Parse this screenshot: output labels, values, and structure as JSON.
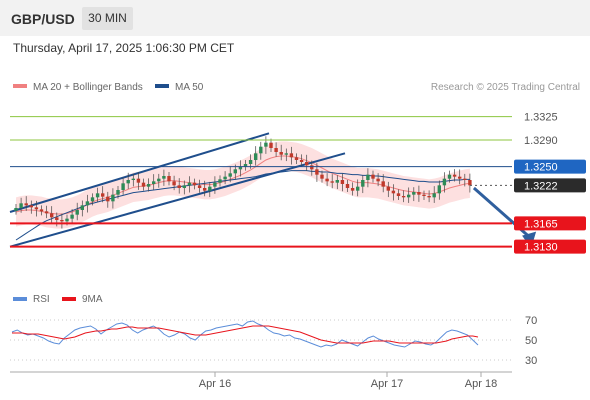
{
  "header": {
    "symbol": "GBP/USD",
    "interval": "30 MIN",
    "timestamp": "Thursday, April 17, 2025 1:06:30 PM CET"
  },
  "legend": {
    "items": [
      {
        "label": "MA 20 + Bollinger Bands",
        "color": "#f08080"
      },
      {
        "label": "MA 50",
        "color": "#1f4e8c"
      }
    ],
    "credit": "Research © 2025 Trading Central"
  },
  "colors": {
    "support": "#e8141c",
    "resistance": "#8cc63f",
    "pivot": "#1f4e8c",
    "candle_up": "#2e8b57",
    "candle_down": "#c0392b",
    "band_fill": "#fde0e0",
    "arrow": "#2f5f9e",
    "current_badge": "#2b2b2b",
    "rsi_line": "#5b8dd9",
    "rsi_ma_line": "#e8141c"
  },
  "chart_data": [
    {
      "type": "candlestick",
      "title": "GBP/USD",
      "ylim": [
        1.308,
        1.335
      ],
      "x_ticks": [
        "Apr 16",
        "Apr 17",
        "Apr 18"
      ],
      "levels": [
        {
          "label": "1.3325",
          "value": 1.3325,
          "kind": "resistance"
        },
        {
          "label": "1.3290",
          "value": 1.329,
          "kind": "resistance"
        },
        {
          "label": "1.3250",
          "value": 1.325,
          "kind": "pivot"
        },
        {
          "label": "1.3222",
          "value": 1.3222,
          "kind": "current"
        },
        {
          "label": "1.3165",
          "value": 1.3165,
          "kind": "support"
        },
        {
          "label": "1.3130",
          "value": 1.313,
          "kind": "support"
        }
      ],
      "close_series": [
        1.3188,
        1.3195,
        1.3192,
        1.3189,
        1.3186,
        1.3183,
        1.318,
        1.3174,
        1.317,
        1.3168,
        1.3172,
        1.3178,
        1.3185,
        1.3192,
        1.3198,
        1.3204,
        1.321,
        1.3205,
        1.3198,
        1.3208,
        1.3215,
        1.3225,
        1.323,
        1.3232,
        1.3226,
        1.322,
        1.3224,
        1.3228,
        1.3232,
        1.3236,
        1.3228,
        1.3222,
        1.3218,
        1.3222,
        1.3226,
        1.3222,
        1.3218,
        1.3214,
        1.322,
        1.3226,
        1.3231,
        1.3235,
        1.324,
        1.3246,
        1.325,
        1.3254,
        1.326,
        1.327,
        1.328,
        1.3286,
        1.3278,
        1.3272,
        1.3268,
        1.327,
        1.3264,
        1.326,
        1.3257,
        1.3252,
        1.3246,
        1.3238,
        1.3232,
        1.3228,
        1.3226,
        1.323,
        1.3224,
        1.3218,
        1.3214,
        1.322,
        1.323,
        1.3238,
        1.3232,
        1.3228,
        1.322,
        1.3214,
        1.321,
        1.3206,
        1.3204,
        1.3208,
        1.3212,
        1.3208,
        1.3206,
        1.3204,
        1.321,
        1.3222,
        1.3232,
        1.3238,
        1.3235,
        1.3232,
        1.323,
        1.3222
      ],
      "ma20_series": [
        1.3182,
        1.3184,
        1.3185,
        1.3185,
        1.3184,
        1.3183,
        1.3181,
        1.318,
        1.3179,
        1.3179,
        1.318,
        1.3182,
        1.3185,
        1.3189,
        1.3193,
        1.3197,
        1.32,
        1.3202,
        1.3204,
        1.3207,
        1.321,
        1.3213,
        1.3216,
        1.3219,
        1.322,
        1.3221,
        1.3222,
        1.3224,
        1.3226,
        1.3228,
        1.3229,
        1.3229,
        1.3228,
        1.3227,
        1.3226,
        1.3225,
        1.3224,
        1.3223,
        1.3223,
        1.3224,
        1.3226,
        1.3228,
        1.3231,
        1.3234,
        1.3237,
        1.3241,
        1.3245,
        1.325,
        1.3255,
        1.326,
        1.3263,
        1.3265,
        1.3266,
        1.3266,
        1.3265,
        1.3264,
        1.3262,
        1.3259,
        1.3256,
        1.3252,
        1.3248,
        1.3244,
        1.324,
        1.3237,
        1.3234,
        1.3231,
        1.3228,
        1.3226,
        1.3226,
        1.3226,
        1.3225,
        1.3224,
        1.3222,
        1.322,
        1.3218,
        1.3216,
        1.3214,
        1.3213,
        1.3212,
        1.3211,
        1.321,
        1.3209,
        1.321,
        1.3212,
        1.3215,
        1.3218,
        1.322,
        1.3222,
        1.3224,
        1.3225
      ],
      "ma50_series": [
        1.314,
        1.3145,
        1.315,
        1.3155,
        1.316,
        1.3165,
        1.3169,
        1.3172,
        1.3175,
        1.3178,
        1.3181,
        1.3184,
        1.3187,
        1.319,
        1.3193,
        1.3195,
        1.3197,
        1.3199,
        1.3201,
        1.3203,
        1.3205,
        1.3207,
        1.3209,
        1.3211,
        1.3212,
        1.3213,
        1.3214,
        1.3215,
        1.3216,
        1.3217,
        1.3218,
        1.3219,
        1.322,
        1.3221,
        1.3222,
        1.3223,
        1.3224,
        1.3225,
        1.3226,
        1.3227,
        1.3228,
        1.3229,
        1.323,
        1.3231,
        1.3232,
        1.3233,
        1.3234,
        1.3235,
        1.3237,
        1.3239,
        1.324,
        1.3241,
        1.3242,
        1.3243,
        1.3244,
        1.3244,
        1.3244,
        1.3244,
        1.3243,
        1.3243,
        1.3242,
        1.3242,
        1.3241,
        1.324,
        1.324,
        1.3239,
        1.3238,
        1.3238,
        1.3237,
        1.3237,
        1.3236,
        1.3236,
        1.3235,
        1.3234,
        1.3233,
        1.3232,
        1.3231,
        1.323,
        1.3229,
        1.3228,
        1.3228,
        1.3227,
        1.3227,
        1.3227,
        1.3228,
        1.3229,
        1.323,
        1.323,
        1.3231,
        1.3231
      ],
      "band_width": 0.0022,
      "channel": {
        "upper": [
          [
            0,
            1.3182
          ],
          [
            53,
            1.33
          ]
        ],
        "lower": [
          [
            0,
            1.313
          ],
          [
            68,
            1.327
          ]
        ]
      },
      "forecast_arrow": {
        "from": [
          89,
          1.3218
        ],
        "to": [
          101,
          1.313
        ]
      }
    },
    {
      "type": "line",
      "title": "RSI",
      "legend": [
        "RSI",
        "9MA"
      ],
      "ylim": [
        25,
        75
      ],
      "y_ticks": [
        "70",
        "50",
        "30"
      ],
      "rsi": [
        58,
        60,
        57,
        55,
        56,
        54,
        52,
        49,
        47,
        46,
        52,
        56,
        60,
        62,
        63,
        64,
        61,
        56,
        60,
        63,
        66,
        67,
        65,
        60,
        57,
        60,
        62,
        64,
        61,
        56,
        53,
        55,
        58,
        56,
        52,
        50,
        55,
        59,
        60,
        62,
        63,
        64,
        65,
        66,
        64,
        68,
        69,
        66,
        64,
        60,
        57,
        56,
        54,
        55,
        52,
        51,
        49,
        47,
        45,
        43,
        45,
        44,
        46,
        50,
        48,
        46,
        44,
        48,
        52,
        54,
        51,
        49,
        47,
        45,
        44,
        43,
        46,
        49,
        48,
        46,
        45,
        48,
        53,
        58,
        60,
        59,
        57,
        55,
        50,
        45
      ],
      "rsi_ma": [
        57,
        57,
        57,
        56,
        56,
        56,
        55,
        54,
        53,
        52,
        51,
        52,
        53,
        55,
        57,
        58,
        59,
        59,
        60,
        61,
        61,
        62,
        63,
        63,
        62,
        62,
        62,
        62,
        62,
        61,
        60,
        59,
        58,
        57,
        56,
        55,
        55,
        55,
        56,
        57,
        58,
        59,
        60,
        61,
        62,
        63,
        64,
        64,
        64,
        64,
        63,
        62,
        61,
        60,
        59,
        58,
        56,
        54,
        52,
        50,
        49,
        48,
        47,
        47,
        47,
        47,
        47,
        47,
        48,
        49,
        49,
        49,
        49,
        48,
        47,
        47,
        47,
        47,
        47,
        47,
        47,
        47,
        48,
        49,
        51,
        52,
        53,
        54,
        54,
        53
      ]
    }
  ]
}
